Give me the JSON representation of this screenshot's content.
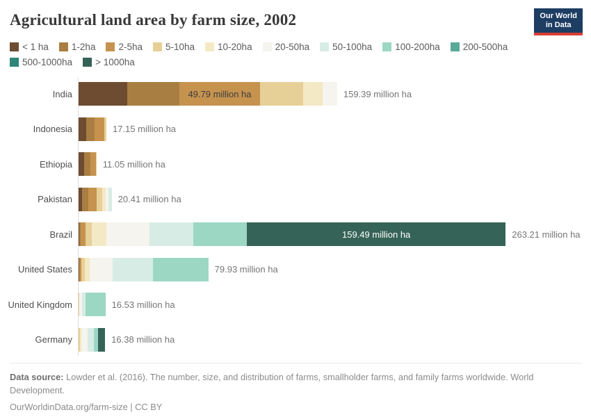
{
  "header": {
    "title": "Agricultural land area by farm size, 2002",
    "logo_line1": "Our World",
    "logo_line2": "in Data",
    "logo_bg": "#1d3d63",
    "logo_accent": "#d93f34"
  },
  "chart_data": {
    "type": "bar",
    "stacked": true,
    "orientation": "horizontal",
    "title": "Agricultural land area by farm size, 2002",
    "unit": "million ha",
    "legend_position": "top",
    "categories": [
      "India",
      "Indonesia",
      "Ethiopia",
      "Pakistan",
      "Brazil",
      "United States",
      "United Kingdom",
      "Germany"
    ],
    "series": [
      {
        "name": "< 1 ha",
        "color": "#6d4c31",
        "values": [
          30.0,
          4.7,
          3.2,
          2.1,
          0.5,
          0.5,
          0,
          0
        ]
      },
      {
        "name": "1-2ha",
        "color": "#a97e43",
        "values": [
          32.1,
          5.2,
          4.2,
          3.8,
          0.7,
          0,
          0,
          0
        ]
      },
      {
        "name": "2-5ha",
        "color": "#c6934f",
        "values": [
          49.79,
          6.1,
          3.3,
          5.4,
          3.2,
          1.1,
          0,
          0
        ]
      },
      {
        "name": "5-10ha",
        "color": "#e7d098",
        "values": [
          26.4,
          1.15,
          0.35,
          3.2,
          3.6,
          2.3,
          0.55,
          1.0
        ]
      },
      {
        "name": "10-20ha",
        "color": "#f4e9c5",
        "values": [
          12.1,
          0,
          0,
          2.1,
          9.2,
          3.0,
          0,
          0.7
        ]
      },
      {
        "name": "20-50ha",
        "color": "#f5f4ee",
        "values": [
          9.0,
          0,
          0,
          1.9,
          26.4,
          14.0,
          1.5,
          3.8
        ]
      },
      {
        "name": "50-100ha",
        "color": "#d7ece4",
        "values": [
          0,
          0,
          0,
          1.91,
          27.0,
          25.0,
          2.3,
          4.0
        ]
      },
      {
        "name": "100-200ha",
        "color": "#9cd7c4",
        "values": [
          0,
          0,
          0,
          0,
          33.12,
          34.03,
          12.18,
          2.6
        ]
      },
      {
        "name": "200-500ha",
        "color": "#58a998",
        "values": [
          0,
          0,
          0,
          0,
          0,
          0,
          0,
          0
        ]
      },
      {
        "name": "500-1000ha",
        "color": "#2f8678",
        "values": [
          0,
          0,
          0,
          0,
          0,
          0,
          0,
          0
        ]
      },
      {
        "name": "> 1000ha",
        "color": "#366357",
        "values": [
          0,
          0,
          0,
          0,
          159.49,
          0,
          0,
          4.28
        ]
      }
    ],
    "totals": [
      {
        "country": "India",
        "value": 159.39,
        "label": "159.39 million ha"
      },
      {
        "country": "Indonesia",
        "value": 17.15,
        "label": "17.15 million ha"
      },
      {
        "country": "Ethiopia",
        "value": 11.05,
        "label": "11.05 million ha"
      },
      {
        "country": "Pakistan",
        "value": 20.41,
        "label": "20.41 million ha"
      },
      {
        "country": "Brazil",
        "value": 263.21,
        "label": "263.21 million ha"
      },
      {
        "country": "United States",
        "value": 79.93,
        "label": "79.93 million ha"
      },
      {
        "country": "United Kingdom",
        "value": 16.53,
        "label": "16.53 million ha"
      },
      {
        "country": "Germany",
        "value": 16.38,
        "label": "16.38 million ha"
      }
    ],
    "bar_labels": [
      {
        "country": "India",
        "series": "2-5ha",
        "label": "49.79 million ha",
        "text_color": "#3d3d3d"
      },
      {
        "country": "Brazil",
        "series": "> 1000ha",
        "label": "159.49 million ha",
        "text_color": "#ffffff"
      }
    ]
  },
  "footer": {
    "source_label": "Data source:",
    "source_text": "Lowder et al. (2016). The number, size, and distribution of farms, smallholder farms, and family farms worldwide. World Development.",
    "license": "OurWorldinData.org/farm-size | CC BY"
  }
}
